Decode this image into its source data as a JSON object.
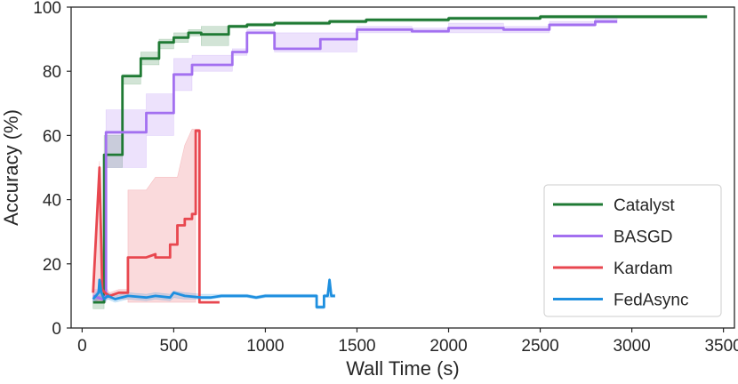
{
  "chart_data": {
    "type": "line",
    "xlabel": "Wall Time (s)",
    "ylabel": "Accuracy (%)",
    "xlim": [
      -60,
      3560
    ],
    "ylim": [
      0,
      100
    ],
    "xticks": [
      0,
      500,
      1000,
      1500,
      2000,
      2500,
      3000,
      3500
    ],
    "yticks": [
      0,
      20,
      40,
      60,
      80,
      100
    ],
    "grid": false,
    "legend_position": "bottom-right",
    "series": [
      {
        "name": "Catalyst",
        "color": "#1f7a34",
        "x": [
          60,
          120,
          120,
          220,
          220,
          320,
          320,
          420,
          420,
          500,
          500,
          580,
          580,
          650,
          650,
          800,
          800,
          900,
          900,
          1050,
          1050,
          1350,
          1350,
          1550,
          1550,
          2000,
          2000,
          2500,
          2500,
          3000,
          3000,
          3410
        ],
        "y": [
          8,
          8,
          54,
          54,
          78.5,
          78.5,
          84,
          84,
          89,
          89,
          90.5,
          90.5,
          92,
          92,
          91.5,
          91.5,
          94,
          94,
          94.5,
          94.5,
          95,
          95,
          95.5,
          95.5,
          96,
          96,
          96.5,
          96.5,
          97,
          97,
          97,
          97
        ],
        "lower": [
          6,
          6,
          50,
          50,
          76,
          76,
          82,
          82,
          87,
          87,
          89,
          89,
          91,
          91,
          88,
          88,
          93.5,
          93.5,
          94,
          94,
          94.5,
          94.5,
          95,
          95,
          95.5,
          95.5,
          96,
          96,
          96.5,
          96.5,
          96.5,
          96.5
        ],
        "upper": [
          10,
          10,
          60,
          60,
          79,
          79,
          86,
          86,
          90,
          90,
          92,
          92,
          93,
          93,
          94,
          94,
          94.5,
          94.5,
          95,
          95,
          95.5,
          95.5,
          96,
          96,
          96.5,
          96.5,
          97,
          97,
          97.5,
          97.5,
          97.5,
          97.5
        ]
      },
      {
        "name": "BASGD",
        "color": "#a370f0",
        "x": [
          60,
          110,
          130,
          130,
          350,
          350,
          500,
          500,
          600,
          600,
          820,
          820,
          900,
          900,
          1050,
          1050,
          1300,
          1300,
          1500,
          1500,
          1800,
          1800,
          2000,
          2000,
          2300,
          2300,
          2550,
          2550,
          2800,
          2800,
          2920
        ],
        "y": [
          10,
          9,
          10,
          61,
          61,
          67,
          67,
          79,
          79,
          82,
          82,
          86,
          86,
          92,
          92,
          87,
          87,
          90,
          90,
          93,
          93,
          92.5,
          92.5,
          93.5,
          93.5,
          93,
          93,
          94.5,
          94.5,
          95.5,
          95.5
        ],
        "lower": [
          8,
          8,
          8,
          50,
          50,
          60,
          60,
          74,
          74,
          80,
          80,
          85,
          85,
          92,
          92,
          86,
          86,
          86,
          86,
          92,
          92,
          92,
          92,
          92,
          92,
          92,
          92,
          94,
          94,
          95,
          95
        ],
        "upper": [
          12,
          12,
          12,
          68,
          68,
          73,
          73,
          84,
          84,
          85,
          85,
          87,
          87,
          93,
          93,
          92,
          92,
          92,
          92,
          94,
          94,
          93.5,
          93.5,
          95,
          95,
          94,
          94,
          95.5,
          95.5,
          96.5,
          96.5
        ]
      },
      {
        "name": "Kardam",
        "color": "#e8474f",
        "x": [
          60,
          95,
          110,
          125,
          150,
          200,
          250,
          250,
          350,
          400,
          400,
          480,
          480,
          520,
          520,
          560,
          560,
          600,
          600,
          620,
          620,
          640,
          640,
          700,
          700,
          750
        ],
        "y": [
          11,
          50,
          12,
          11,
          10,
          11,
          11,
          22,
          22,
          23,
          22,
          22,
          26,
          26,
          32,
          32,
          34,
          34,
          35.5,
          35.5,
          61.5,
          61.5,
          8,
          8,
          8,
          8
        ],
        "lower": [
          9,
          8,
          8,
          9,
          9,
          9,
          9,
          8,
          8,
          8,
          8,
          8,
          8,
          8,
          8,
          8,
          8,
          8,
          8,
          8,
          61,
          61,
          8,
          8,
          8,
          8
        ],
        "upper": [
          13,
          52,
          14,
          13,
          11,
          12,
          12,
          43,
          43,
          47,
          47,
          47,
          47,
          47,
          47,
          57,
          57,
          62,
          62,
          62,
          62,
          62,
          8,
          8,
          8,
          8
        ]
      },
      {
        "name": "FedAsync",
        "color": "#1e8fdf",
        "x": [
          60,
          90,
          95,
          105,
          120,
          140,
          180,
          250,
          350,
          400,
          480,
          500,
          560,
          650,
          700,
          760,
          800,
          900,
          950,
          1000,
          1100,
          1200,
          1280,
          1280,
          1320,
          1320,
          1340,
          1350,
          1360,
          1380
        ],
        "y": [
          9,
          11,
          15,
          11,
          9,
          10,
          9,
          10,
          9.5,
          10,
          9.5,
          11,
          10,
          9.5,
          9.5,
          10,
          10,
          10,
          9.5,
          10,
          10,
          10,
          10,
          6.5,
          6.5,
          10,
          10,
          15,
          10,
          10
        ],
        "lower": [
          8,
          9,
          9,
          9,
          8,
          9,
          8,
          9,
          8.5,
          9,
          8.5,
          9.5,
          9,
          9,
          9,
          9.5,
          9.5,
          9.5,
          9,
          9.5,
          9.5,
          9.5,
          9.5,
          6,
          6,
          9.5,
          9.5,
          9.5,
          9.5,
          9.5
        ],
        "upper": [
          10,
          12,
          15.5,
          12,
          10,
          11,
          10,
          11,
          10.5,
          11,
          10.5,
          11.5,
          11,
          10.5,
          10.5,
          10.5,
          10.5,
          10.5,
          10,
          10.5,
          10.5,
          10.5,
          10.5,
          7,
          7,
          10.5,
          10.5,
          15.5,
          10.5,
          10.5
        ]
      }
    ]
  }
}
